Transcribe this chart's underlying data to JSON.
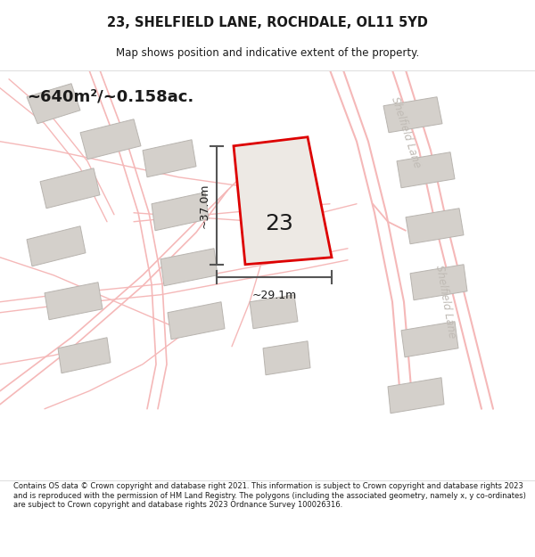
{
  "title": "23, SHELFIELD LANE, ROCHDALE, OL11 5YD",
  "subtitle": "Map shows position and indicative extent of the property.",
  "area_text": "~640m²/~0.158ac.",
  "property_number": "23",
  "width_label": "~29.1m",
  "height_label": "~37.0m",
  "road_label_upper": "Shelfield Lane",
  "road_label_lower": "Shelfield Lane",
  "footer": "Contains OS data © Crown copyright and database right 2021. This information is subject to Crown copyright and database rights 2023 and is reproduced with the permission of HM Land Registry. The polygons (including the associated geometry, namely x, y co-ordinates) are subject to Crown copyright and database rights 2023 Ordnance Survey 100026316.",
  "map_bg": "#ffffff",
  "road_color": "#f5b8b8",
  "building_color": "#d4d0cb",
  "building_edge": "#b8b4af",
  "property_fill": "#ede9e4",
  "property_inner_fill": "#e0dbd4",
  "property_border": "#dd0000",
  "arrow_color": "#555555",
  "text_color": "#1a1a1a",
  "road_text_color": "#c0bbb5",
  "header_bg": "#ffffff",
  "footer_bg": "#ffffff",
  "sep_color": "#e0e0e0"
}
